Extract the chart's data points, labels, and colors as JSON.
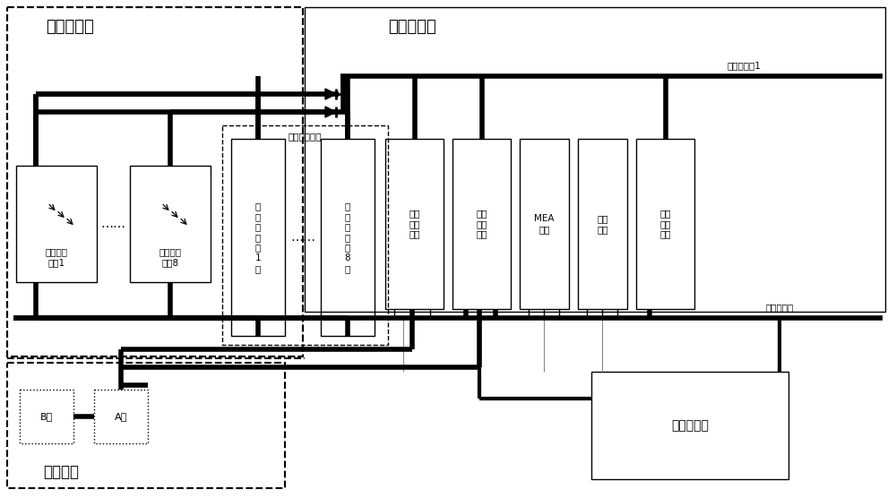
{
  "fig_width": 10.0,
  "fig_height": 5.56,
  "dpi": 100,
  "bg_color": "#ffffff",
  "title_solar": "太阳电池阵",
  "title_power": "电源控制器",
  "label_solar1": "太阳电池\n分阵1",
  "label_solar8": "太阳电池\n分阵8",
  "label_shunt_module": "分流调节模块",
  "label_shunt1": "分\n流\n调\n节\n第\n1\n级",
  "label_shunt8": "分\n流\n调\n节\n第\n8\n级",
  "label_charge": "充电\n调节\n模块",
  "label_discharge": "放电\n调节\n模块",
  "label_mea": "MEA\n模块",
  "label_filter": "滤波\n电路",
  "label_secondary": "二次\n电源\n模块",
  "label_pos_bus": "供电正母线1",
  "label_neg_bus": "供电负母线",
  "label_battery_group": "蓄电池组",
  "label_power_pc": "电源下位机",
  "label_B": "B组",
  "label_A": "A组"
}
